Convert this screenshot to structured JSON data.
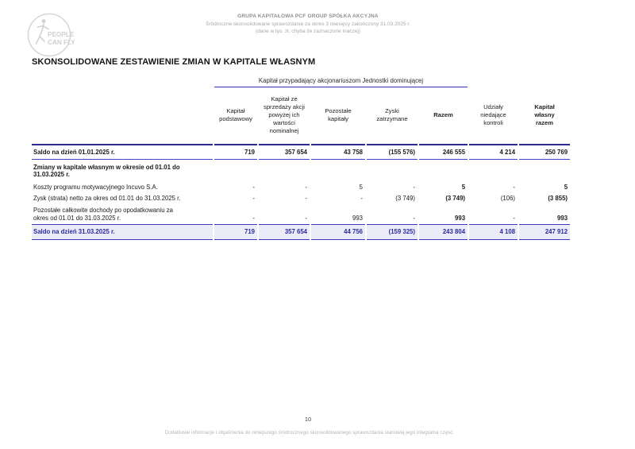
{
  "page_header": {
    "company": "GRUPA KAPITAŁOWA PCF GROUP SPÓŁKA AKCYJNA",
    "report_line": "Śródroczne skonsolidowane sprawozdanie za okres 3 miesięcy zakończony 31.03.2025 r.",
    "note_line": "(dane w tys. zł, chyba że zaznaczone inaczej)",
    "logo": {
      "line1": "PEOPLE",
      "line2": "CAN FLY"
    }
  },
  "title": "SKONSOLIDOWANE ZESTAWIENIE ZMIAN W KAPITALE WŁASNYM",
  "table": {
    "group_header": "Kapitał przypadający akcjonariuszom Jednostki dominującej",
    "columns": [
      "Kapitał\npodstawowy",
      "Kapitał ze\nsprzedaży akcji\npowyżej ich\nwartości\nnominalnej",
      "Pozostałe\nkapitały",
      "Zyski\nzatrzymane",
      "Razem",
      "Udziały\nniedające\nkontroli",
      "Kapitał\nwłasny\nrazem"
    ],
    "rows": [
      {
        "label": "Saldo na dzień 01.01.2025 r.",
        "style": "opening",
        "values": [
          "719",
          "357 654",
          "43 758",
          "(155 576)",
          "246 555",
          "4 214",
          "250 769"
        ]
      },
      {
        "label": "Zmiany w kapitale własnym w okresie od 01.01 do\n31.03.2025 r.",
        "style": "section",
        "values": [
          "",
          "",
          "",
          "",
          "",
          "",
          ""
        ]
      },
      {
        "label": "Koszty programu motywacyjnego Incuvo S.A.",
        "style": "normal",
        "values": [
          "-",
          "-",
          "5",
          "-",
          "5",
          "-",
          "5"
        ]
      },
      {
        "label": "Zysk (strata) netto za okres od 01.01 do 31.03.2025 r.",
        "style": "normal",
        "values": [
          "-",
          "-",
          "-",
          "(3 749)",
          "(3 749)",
          "(106)",
          "(3 855)"
        ]
      },
      {
        "label": "Pozostałe całkowite dochody po opodatkowaniu za\nokres od 01.01 do 31.03.2025 r.",
        "style": "normal",
        "values": [
          "-",
          "-",
          "993",
          "-",
          "993",
          "-",
          "993"
        ]
      },
      {
        "label": "Saldo na dzień 31.03.2025 r.",
        "style": "closing",
        "values": [
          "719",
          "357 654",
          "44 756",
          "(159 325)",
          "243 804",
          "4 108",
          "247 912"
        ]
      }
    ]
  },
  "footer": {
    "page_number": "10",
    "note": "Dodatkowe informacje i objaśnienia do niniejszego śródrocznego skonsolidowanego sprawozdania stanowią jego integralną część."
  },
  "colors": {
    "rule_dark_blue": "#2b2b8e",
    "rule_blue": "#3b3bc2",
    "closing_row_text": "#2a2aa0",
    "closing_row_bg": "#ececf8",
    "header_gray": "#a9a9a9"
  }
}
